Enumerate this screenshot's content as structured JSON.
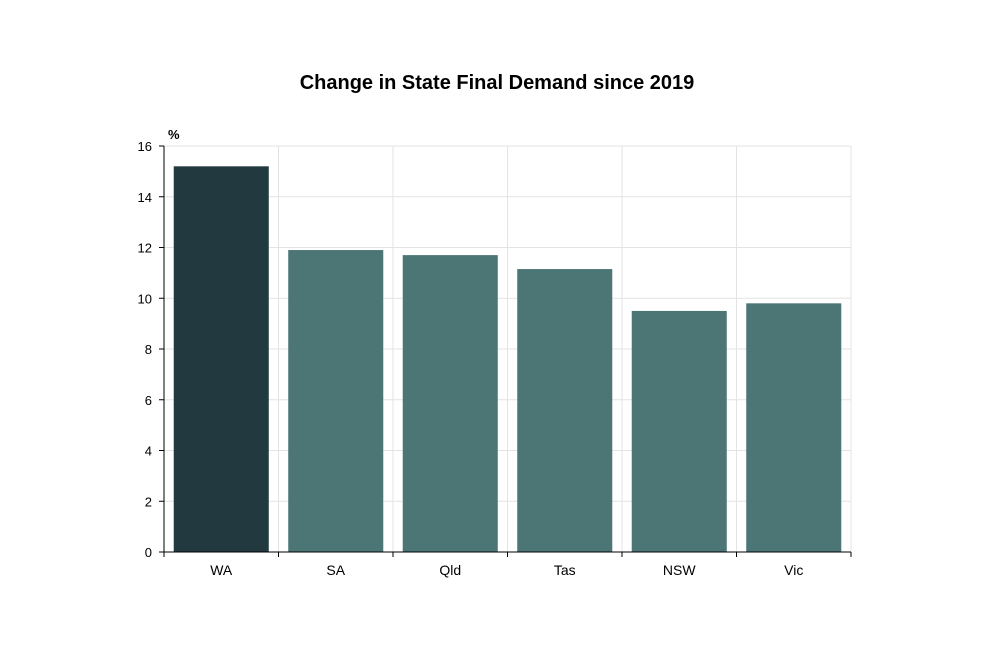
{
  "chart_data": {
    "type": "bar",
    "title": "Change in State Final Demand since 2019",
    "unit_label": "%",
    "xlabel": "",
    "ylabel": "",
    "categories": [
      "WA",
      "SA",
      "Qld",
      "Tas",
      "NSW",
      "Vic"
    ],
    "values": [
      15.2,
      11.9,
      11.7,
      11.15,
      9.5,
      9.8
    ],
    "ylim": [
      0,
      16
    ],
    "yticks": [
      0,
      2,
      4,
      6,
      8,
      10,
      12,
      14,
      16
    ],
    "grid": true,
    "highlight_color": "#223a3f",
    "bar_color": "#4c7676"
  }
}
